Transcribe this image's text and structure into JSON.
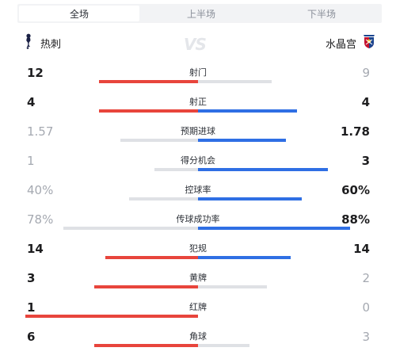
{
  "tabs": [
    {
      "label": "全场",
      "active": true
    },
    {
      "label": "上半场",
      "active": false
    },
    {
      "label": "下半场",
      "active": false
    }
  ],
  "home_team": {
    "name": "热刺",
    "icon": "spurs-crest-icon"
  },
  "away_team": {
    "name": "水晶宫",
    "icon": "crystal-palace-crest-icon"
  },
  "vs_text": "VS",
  "colors": {
    "home_leading": "#e8453c",
    "away_leading": "#2f6fe4",
    "trailing": "#dfe1e5"
  },
  "stats": [
    {
      "label": "射门",
      "home": "12",
      "away": "9",
      "home_value": 12,
      "away_value": 9,
      "max": 21,
      "home_color": "red",
      "away_color": "grey",
      "home_muted": false,
      "away_muted": true
    },
    {
      "label": "射正",
      "home": "4",
      "away": "4",
      "home_value": 4,
      "away_value": 4,
      "max": 7,
      "home_color": "red",
      "away_color": "blue",
      "home_muted": false,
      "away_muted": false
    },
    {
      "label": "预期进球",
      "home": "1.57",
      "away": "1.78",
      "home_value": 1.57,
      "away_value": 1.78,
      "max": 3.5,
      "home_color": "grey",
      "away_color": "blue",
      "home_muted": true,
      "away_muted": false
    },
    {
      "label": "得分机会",
      "home": "1",
      "away": "3",
      "home_value": 1,
      "away_value": 3,
      "max": 4,
      "home_color": "grey",
      "away_color": "blue",
      "home_muted": true,
      "away_muted": false
    },
    {
      "label": "控球率",
      "home": "40%",
      "away": "60%",
      "home_value": 40,
      "away_value": 60,
      "max": 100,
      "home_color": "grey",
      "away_color": "blue",
      "home_muted": true,
      "away_muted": false
    },
    {
      "label": "传球成功率",
      "home": "78%",
      "away": "88%",
      "home_value": 78,
      "away_value": 88,
      "max": 100,
      "home_color": "grey",
      "away_color": "blue",
      "home_muted": true,
      "away_muted": false
    },
    {
      "label": "犯规",
      "home": "14",
      "away": "14",
      "home_value": 14,
      "away_value": 14,
      "max": 26,
      "home_color": "red",
      "away_color": "blue",
      "home_muted": false,
      "away_muted": false
    },
    {
      "label": "黄牌",
      "home": "3",
      "away": "2",
      "home_value": 3,
      "away_value": 2,
      "max": 5,
      "home_color": "red",
      "away_color": "grey",
      "home_muted": false,
      "away_muted": true
    },
    {
      "label": "红牌",
      "home": "1",
      "away": "0",
      "home_value": 1,
      "away_value": 0,
      "max": 1,
      "home_color": "red",
      "away_color": "grey",
      "home_muted": false,
      "away_muted": true
    },
    {
      "label": "角球",
      "home": "6",
      "away": "3",
      "home_value": 6,
      "away_value": 3,
      "max": 10,
      "home_color": "red",
      "away_color": "grey",
      "home_muted": false,
      "away_muted": true
    }
  ]
}
